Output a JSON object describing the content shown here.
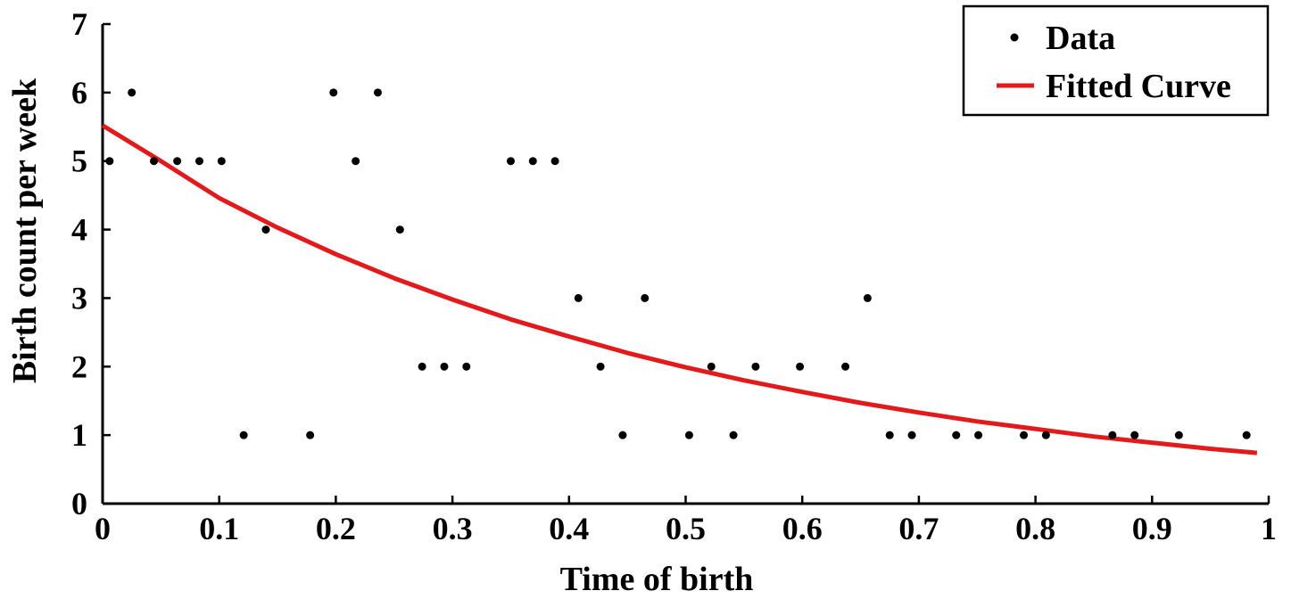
{
  "chart_data": {
    "type": "scatter",
    "title": "",
    "xlabel": "Time of birth",
    "ylabel": "Birth count per week",
    "xlim": [
      0,
      1
    ],
    "ylim": [
      0,
      7
    ],
    "xticks": [
      0,
      0.1,
      0.2,
      0.3,
      0.4,
      0.5,
      0.6,
      0.7,
      0.8,
      0.9,
      1
    ],
    "xtick_labels": [
      "0",
      "0.1",
      "0.2",
      "0.3",
      "0.4",
      "0.5",
      "0.6",
      "0.7",
      "0.8",
      "0.9",
      "1"
    ],
    "yticks": [
      0,
      1,
      2,
      3,
      4,
      5,
      6,
      7
    ],
    "ytick_labels": [
      "0",
      "1",
      "2",
      "3",
      "4",
      "5",
      "6",
      "7"
    ],
    "grid": false,
    "legend_position": "top-right",
    "series": [
      {
        "name": "Data",
        "kind": "scatter",
        "color": "#000000",
        "x": [
          0.006,
          0.025,
          0.044,
          0.064,
          0.083,
          0.102,
          0.121,
          0.14,
          0.178,
          0.198,
          0.217,
          0.236,
          0.255,
          0.274,
          0.293,
          0.312,
          0.35,
          0.369,
          0.388,
          0.408,
          0.427,
          0.446,
          0.465,
          0.503,
          0.522,
          0.541,
          0.56,
          0.598,
          0.637,
          0.656,
          0.675,
          0.694,
          0.732,
          0.751,
          0.79,
          0.809,
          0.866,
          0.885,
          0.923,
          0.981
        ],
        "y": [
          5,
          6,
          5,
          5,
          5,
          5,
          1,
          4,
          1,
          6,
          5,
          6,
          4,
          2,
          2,
          2,
          5,
          5,
          5,
          3,
          2,
          1,
          3,
          1,
          2,
          1,
          2,
          2,
          2,
          3,
          1,
          1,
          1,
          1,
          1,
          1,
          1,
          1,
          1,
          1
        ]
      },
      {
        "name": "Fitted Curve",
        "kind": "line",
        "color": "#e31a1c",
        "x": [
          0,
          0.05,
          0.1,
          0.15,
          0.2,
          0.25,
          0.3,
          0.35,
          0.4,
          0.45,
          0.5,
          0.55,
          0.6,
          0.65,
          0.7,
          0.75,
          0.8,
          0.85,
          0.9,
          0.95,
          0.99
        ],
        "y": [
          5.52,
          5.0,
          4.46,
          4.03,
          3.64,
          3.29,
          2.98,
          2.69,
          2.44,
          2.2,
          1.99,
          1.8,
          1.63,
          1.47,
          1.33,
          1.2,
          1.09,
          0.98,
          0.89,
          0.8,
          0.74
        ]
      }
    ]
  }
}
